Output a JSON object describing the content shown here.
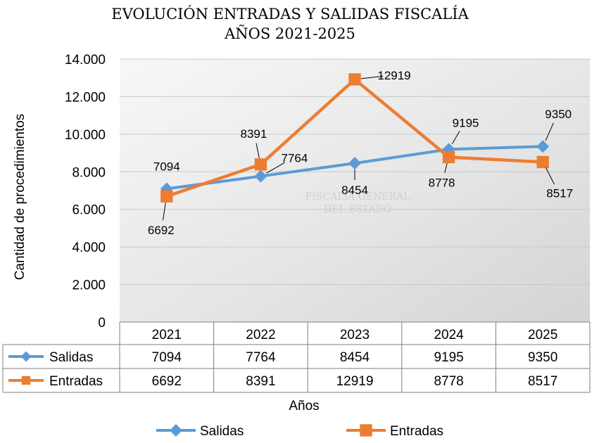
{
  "chart_data": {
    "type": "line",
    "title": "EVOLUCIÓN ENTRADAS Y SALIDAS FISCALÍA",
    "subtitle": "AÑOS 2021-2025",
    "xlabel": "Años",
    "ylabel": "Cantidad de procedimientos",
    "categories": [
      "2021",
      "2022",
      "2023",
      "2024",
      "2025"
    ],
    "ylim": [
      0,
      14000
    ],
    "yticks": [
      0,
      2000,
      4000,
      6000,
      8000,
      10000,
      12000,
      14000
    ],
    "ytick_labels": [
      "0",
      "2.000",
      "4.000",
      "6.000",
      "8.000",
      "10.000",
      "12.000",
      "14.000"
    ],
    "grid": true,
    "legend": "bottom",
    "data_table": true,
    "series": [
      {
        "name": "Salidas",
        "values": [
          7094,
          7764,
          8454,
          9195,
          9350
        ],
        "color": "#5B9BD5",
        "marker": "diamond"
      },
      {
        "name": "Entradas",
        "values": [
          6692,
          8391,
          12919,
          8778,
          8517
        ],
        "color": "#ED7D31",
        "marker": "square"
      }
    ],
    "watermark": [
      "FISCALÍA GENERAL",
      "DEL ESTADO"
    ]
  }
}
